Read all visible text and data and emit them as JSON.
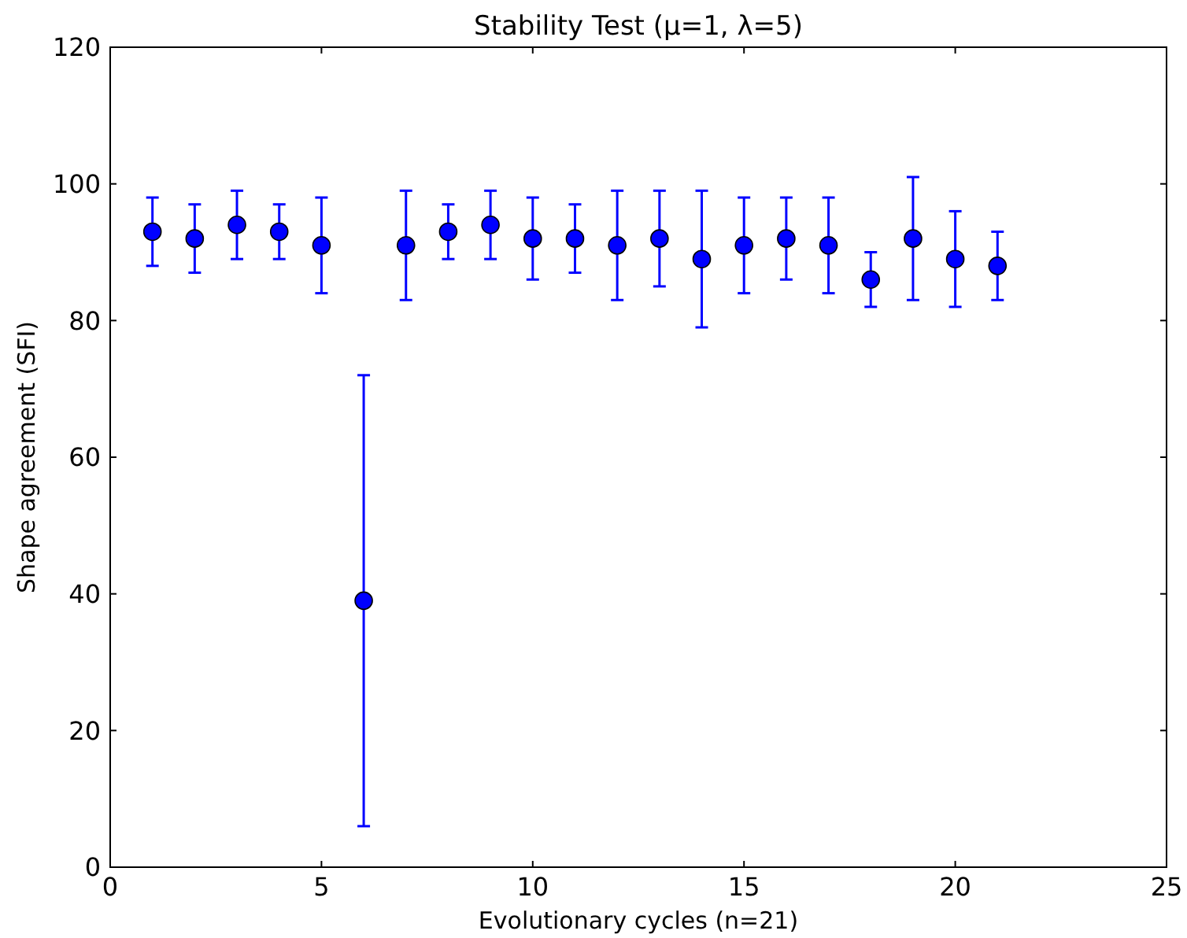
{
  "chart_data": {
    "type": "scatter",
    "title": "Stability Test (μ=1, λ=5)",
    "xlabel": "Evolutionary cycles (n=21)",
    "ylabel": "Shape agreement (SFI)",
    "x": [
      1,
      2,
      3,
      4,
      5,
      6,
      7,
      8,
      9,
      10,
      11,
      12,
      13,
      14,
      15,
      16,
      17,
      18,
      19,
      20,
      21
    ],
    "series": [
      {
        "color": "#0000ff",
        "values": [
          93,
          92,
          94,
          93,
          91,
          39,
          91,
          93,
          94,
          92,
          92,
          91,
          92,
          89,
          91,
          92,
          91,
          86,
          92,
          89,
          88
        ],
        "errors": [
          [
            88,
            98
          ],
          [
            87,
            97
          ],
          [
            89,
            99
          ],
          [
            89,
            97
          ],
          [
            84,
            98
          ],
          [
            6,
            72
          ],
          [
            83,
            99
          ],
          [
            89,
            97
          ],
          [
            89,
            99
          ],
          [
            86,
            98
          ],
          [
            87,
            97
          ],
          [
            83,
            99
          ],
          [
            85,
            99
          ],
          [
            79,
            99
          ],
          [
            84,
            98
          ],
          [
            86,
            98
          ],
          [
            84,
            98
          ],
          [
            82,
            90
          ],
          [
            83,
            101
          ],
          [
            82,
            96
          ],
          [
            83,
            93
          ]
        ]
      }
    ],
    "xlim": [
      0,
      25
    ],
    "xticks": [
      0,
      5,
      10,
      15,
      20,
      25
    ],
    "ylim": [
      0,
      120
    ],
    "yticks": [
      0,
      20,
      40,
      60,
      80,
      100,
      120
    ],
    "marker": "circle",
    "grid": false
  }
}
